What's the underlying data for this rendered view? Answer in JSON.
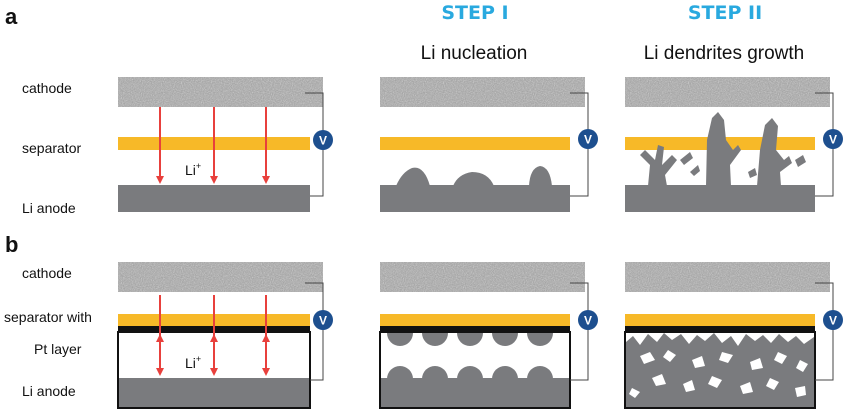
{
  "panels": {
    "a": {
      "label": "a"
    },
    "b": {
      "label": "b"
    }
  },
  "columns": {
    "step1": {
      "step": "STEP I",
      "title": "Li nucleation"
    },
    "step2": {
      "step": "STEP II",
      "title": "Li dendrites growth"
    }
  },
  "labels_a": {
    "cathode": "cathode",
    "separator": "separator",
    "anode": "Li anode",
    "ion": "Li",
    "ion_charge": "+"
  },
  "labels_b": {
    "cathode": "cathode",
    "separator_line1": "separator with",
    "separator_line2": "Pt layer",
    "anode": "Li anode",
    "ion": "Li",
    "ion_charge": "+"
  },
  "voltmeter": {
    "symbol": "V"
  },
  "colors": {
    "separator": "#f7b928",
    "anode": "#7a7b7e",
    "pt_layer": "#111111",
    "arrow": "#e8403c",
    "voltmeter": "#1d4f8f",
    "step_title": "#29a9df",
    "cathode_base": "#9c9c9c"
  }
}
